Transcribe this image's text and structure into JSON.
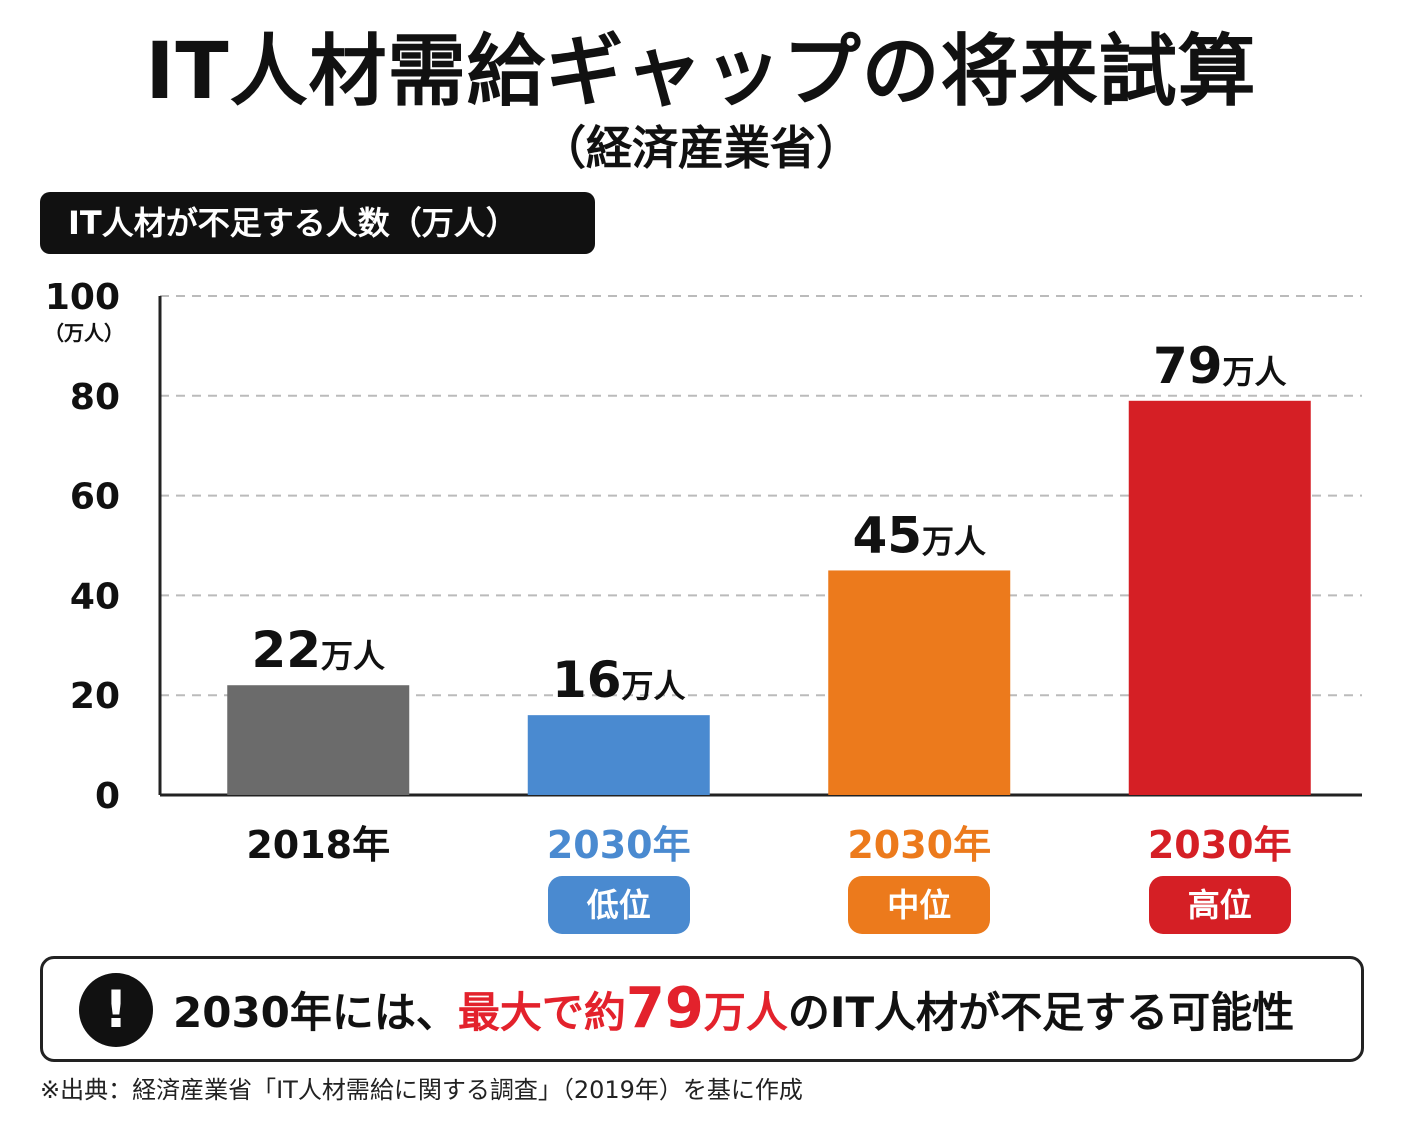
{
  "title": "IT人材需給ギャップの将来試算",
  "subtitle": "（経済産業省）",
  "unit_tag": "IT人材が不足する人数（万人）",
  "colors": {
    "gray": "#6b6b6b",
    "blue": "#4a8ad0",
    "orange": "#ec7a1c",
    "red": "#d51f25",
    "accent_red": "#e3222c"
  },
  "chart_data": {
    "type": "bar",
    "y_unit_label": "（万人）",
    "ylim": [
      0,
      100
    ],
    "yticks": [
      0,
      20,
      40,
      60,
      80,
      100
    ],
    "grid": true,
    "categories": [
      "2018年",
      "2030年",
      "2030年",
      "2030年"
    ],
    "scenarios": [
      "",
      "低位",
      "中位",
      "高位"
    ],
    "values": [
      22,
      16,
      45,
      79
    ],
    "value_labels": [
      "22",
      "16",
      "45",
      "79"
    ],
    "value_unit": "万人",
    "bar_colors": [
      "#6b6b6b",
      "#4a8ad0",
      "#ec7a1c",
      "#d51f25"
    ],
    "label_colors": [
      "#111111",
      "#4a8ad0",
      "#ec7a1c",
      "#d51f25"
    ]
  },
  "callout": {
    "icon": "exclamation-icon",
    "part1": "2030年には、",
    "part2": "最大で約",
    "part3": "79",
    "part4": "万人",
    "part5": "のIT人材が不足する可能性"
  },
  "source_note": "※出典：経済産業省「IT人材需給に関する調査」（2019年）を基に作成"
}
